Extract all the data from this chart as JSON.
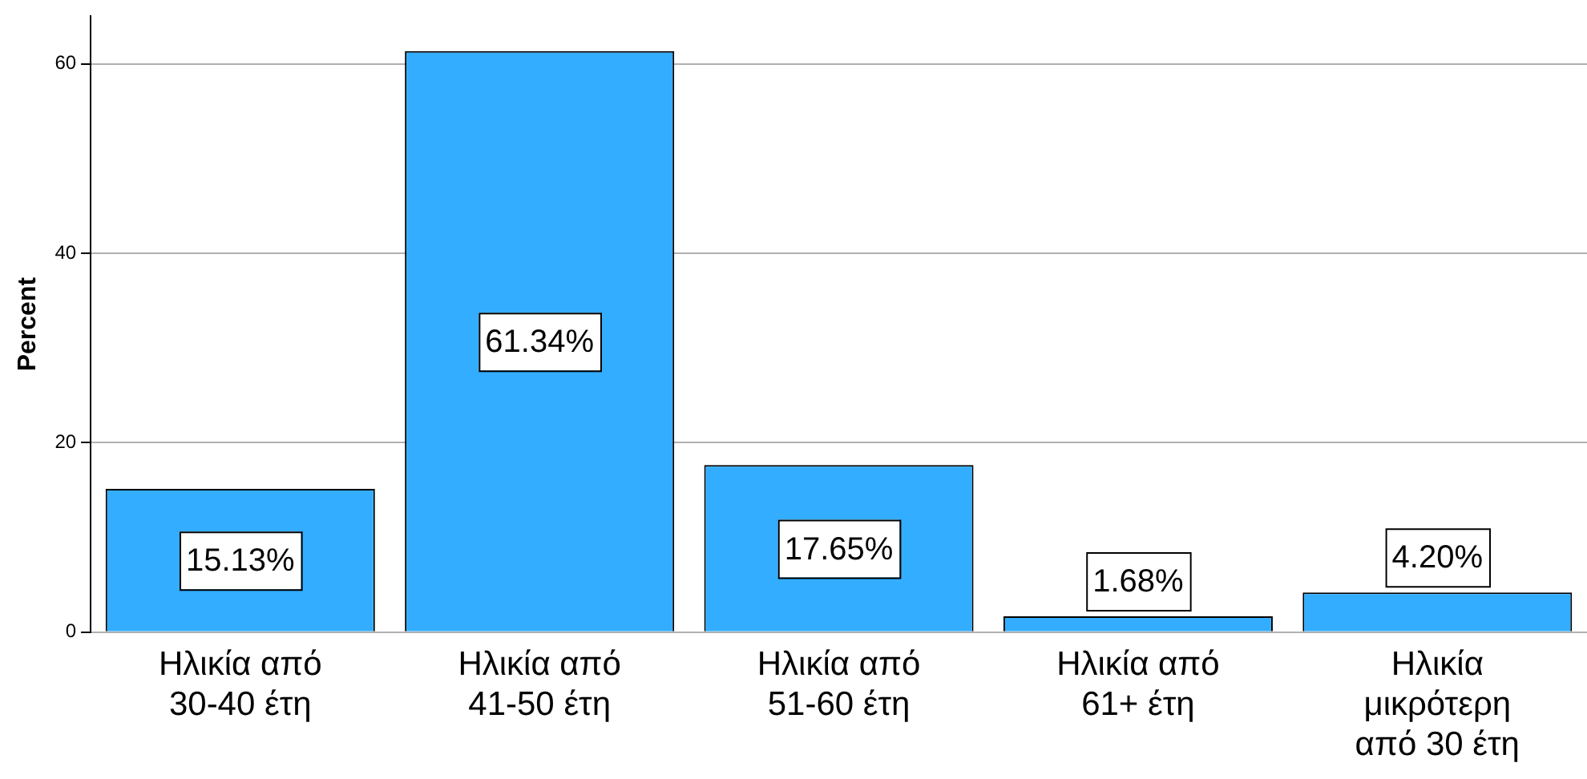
{
  "chart_data": {
    "type": "bar",
    "ylabel": "Percent",
    "categories": [
      "Ηλικία από 30-40 έτη",
      "Ηλικία από 41-50 έτη",
      "Ηλικία από 51-60 έτη",
      "Ηλικία από 61+ έτη",
      "Ηλικία μικρότερη από 30 έτη"
    ],
    "values": [
      15.13,
      61.34,
      17.65,
      1.68,
      4.2
    ],
    "value_labels": [
      "15.13%",
      "61.34%",
      "17.65%",
      "1.68%",
      "4.20%"
    ],
    "color": "#33adff",
    "ylim": [
      0,
      65
    ],
    "yticks": [
      0,
      20,
      40,
      60
    ],
    "grid": "y",
    "legend": false
  }
}
